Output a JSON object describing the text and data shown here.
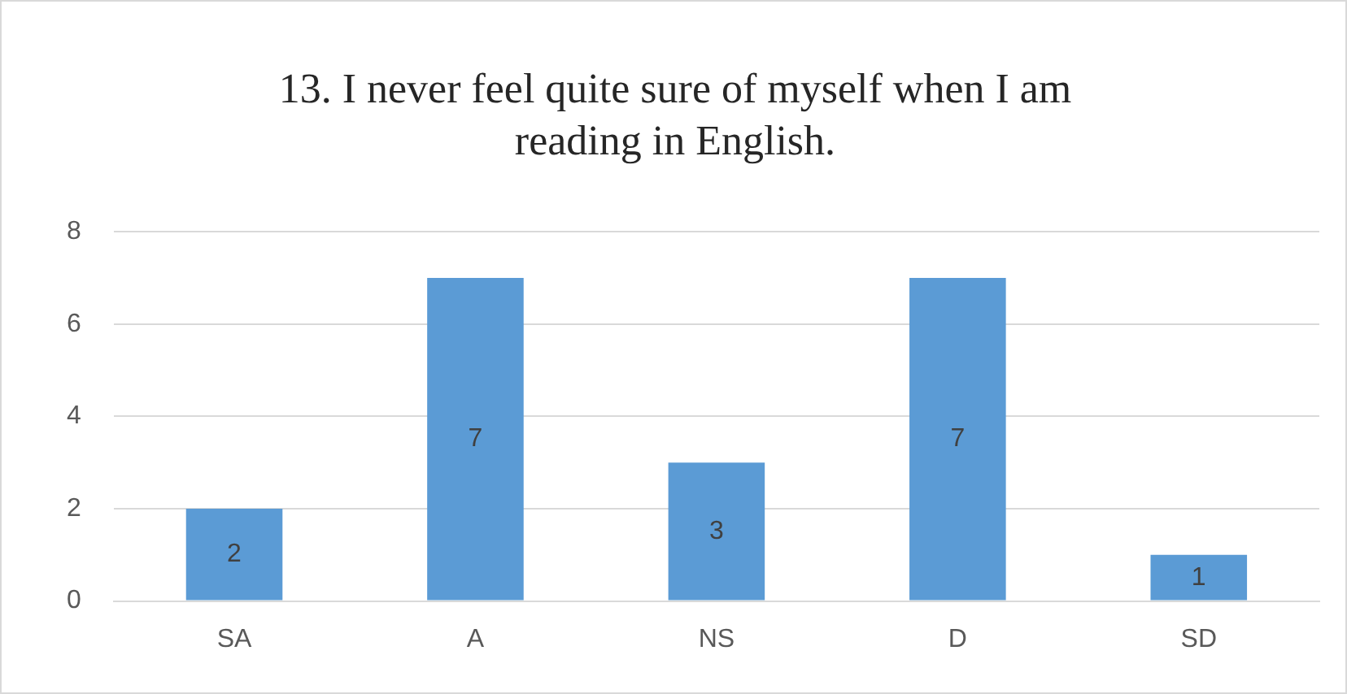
{
  "chart_data": {
    "type": "bar",
    "title": "13. I never feel quite sure of myself when I am reading in English.",
    "categories": [
      "SA",
      "A",
      "NS",
      "D",
      "SD"
    ],
    "values": [
      2,
      7,
      3,
      7,
      1
    ],
    "color": "#5b9bd5",
    "ylim": [
      0,
      8
    ],
    "yticks": [
      0,
      2,
      4,
      6,
      8
    ],
    "grid": "y",
    "data_labels": true,
    "legend": false
  }
}
